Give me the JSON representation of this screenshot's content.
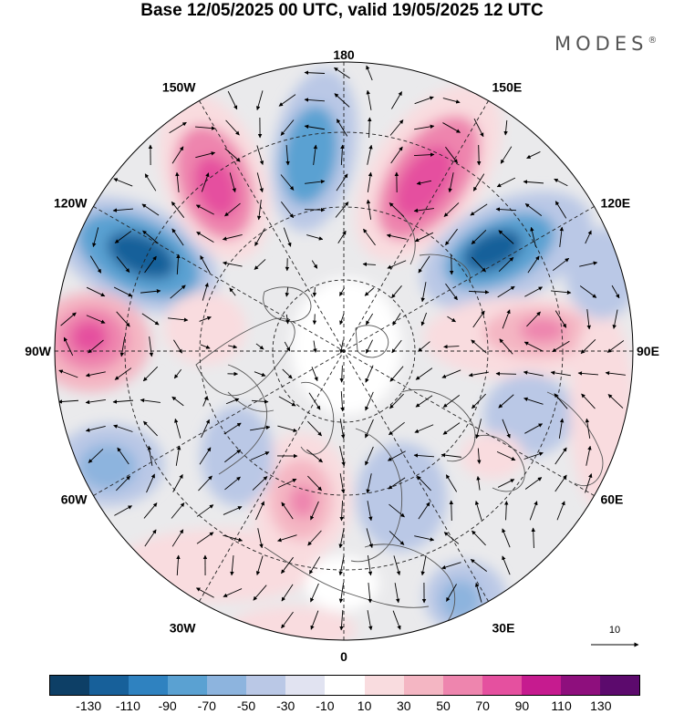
{
  "title": "Base 12/05/2025 00 UTC, valid 19/05/2025 12 UTC",
  "brand": {
    "text": "MODES",
    "mark": "®"
  },
  "map": {
    "projection": "north polar stereographic",
    "longitude_labels": [
      {
        "text": "180",
        "lon": 180
      },
      {
        "text": "150E",
        "lon": 150
      },
      {
        "text": "120E",
        "lon": 120
      },
      {
        "text": "90E",
        "lon": 90
      },
      {
        "text": "60E",
        "lon": 60
      },
      {
        "text": "30E",
        "lon": 30
      },
      {
        "text": "0",
        "lon": 0
      },
      {
        "text": "30W",
        "lon": -30
      },
      {
        "text": "60W",
        "lon": -60
      },
      {
        "text": "90W",
        "lon": -90
      },
      {
        "text": "120W",
        "lon": -120
      },
      {
        "text": "150W",
        "lon": -150
      }
    ],
    "vector_reference": "10",
    "anomaly_centres": [
      {
        "sign": "positive",
        "level": 90,
        "near": "150W-160W"
      },
      {
        "sign": "negative",
        "level": -70,
        "near": "170W"
      },
      {
        "sign": "positive",
        "level": 90,
        "near": "145E-160E"
      },
      {
        "sign": "negative",
        "level": -90,
        "near": "120E"
      },
      {
        "sign": "negative",
        "level": -110,
        "near": "120W"
      },
      {
        "sign": "positive",
        "level": 90,
        "near": "95W"
      },
      {
        "sign": "positive",
        "level": 70,
        "near": "90E"
      },
      {
        "sign": "negative",
        "level": -50,
        "near": "65W"
      },
      {
        "sign": "positive",
        "level": 70,
        "near": "20W"
      },
      {
        "sign": "negative",
        "level": -50,
        "near": "20E"
      },
      {
        "sign": "negative",
        "level": -30,
        "near": "70E"
      },
      {
        "sign": "negative",
        "level": -50,
        "near": "30E"
      }
    ]
  },
  "colorbar": {
    "labels": [
      "-130",
      "-110",
      "-90",
      "-70",
      "-50",
      "-30",
      "-10",
      "10",
      "30",
      "50",
      "70",
      "90",
      "110",
      "130"
    ],
    "colors": [
      "#0d3f66",
      "#17609a",
      "#2f82c0",
      "#5aa1d2",
      "#8db4de",
      "#bac8e6",
      "#e1e3f1",
      "#ffffff",
      "#f9dcdf",
      "#f4b6c3",
      "#ee85ae",
      "#e5509f",
      "#c61b8f",
      "#8e0f7d",
      "#5c0a6d"
    ]
  }
}
